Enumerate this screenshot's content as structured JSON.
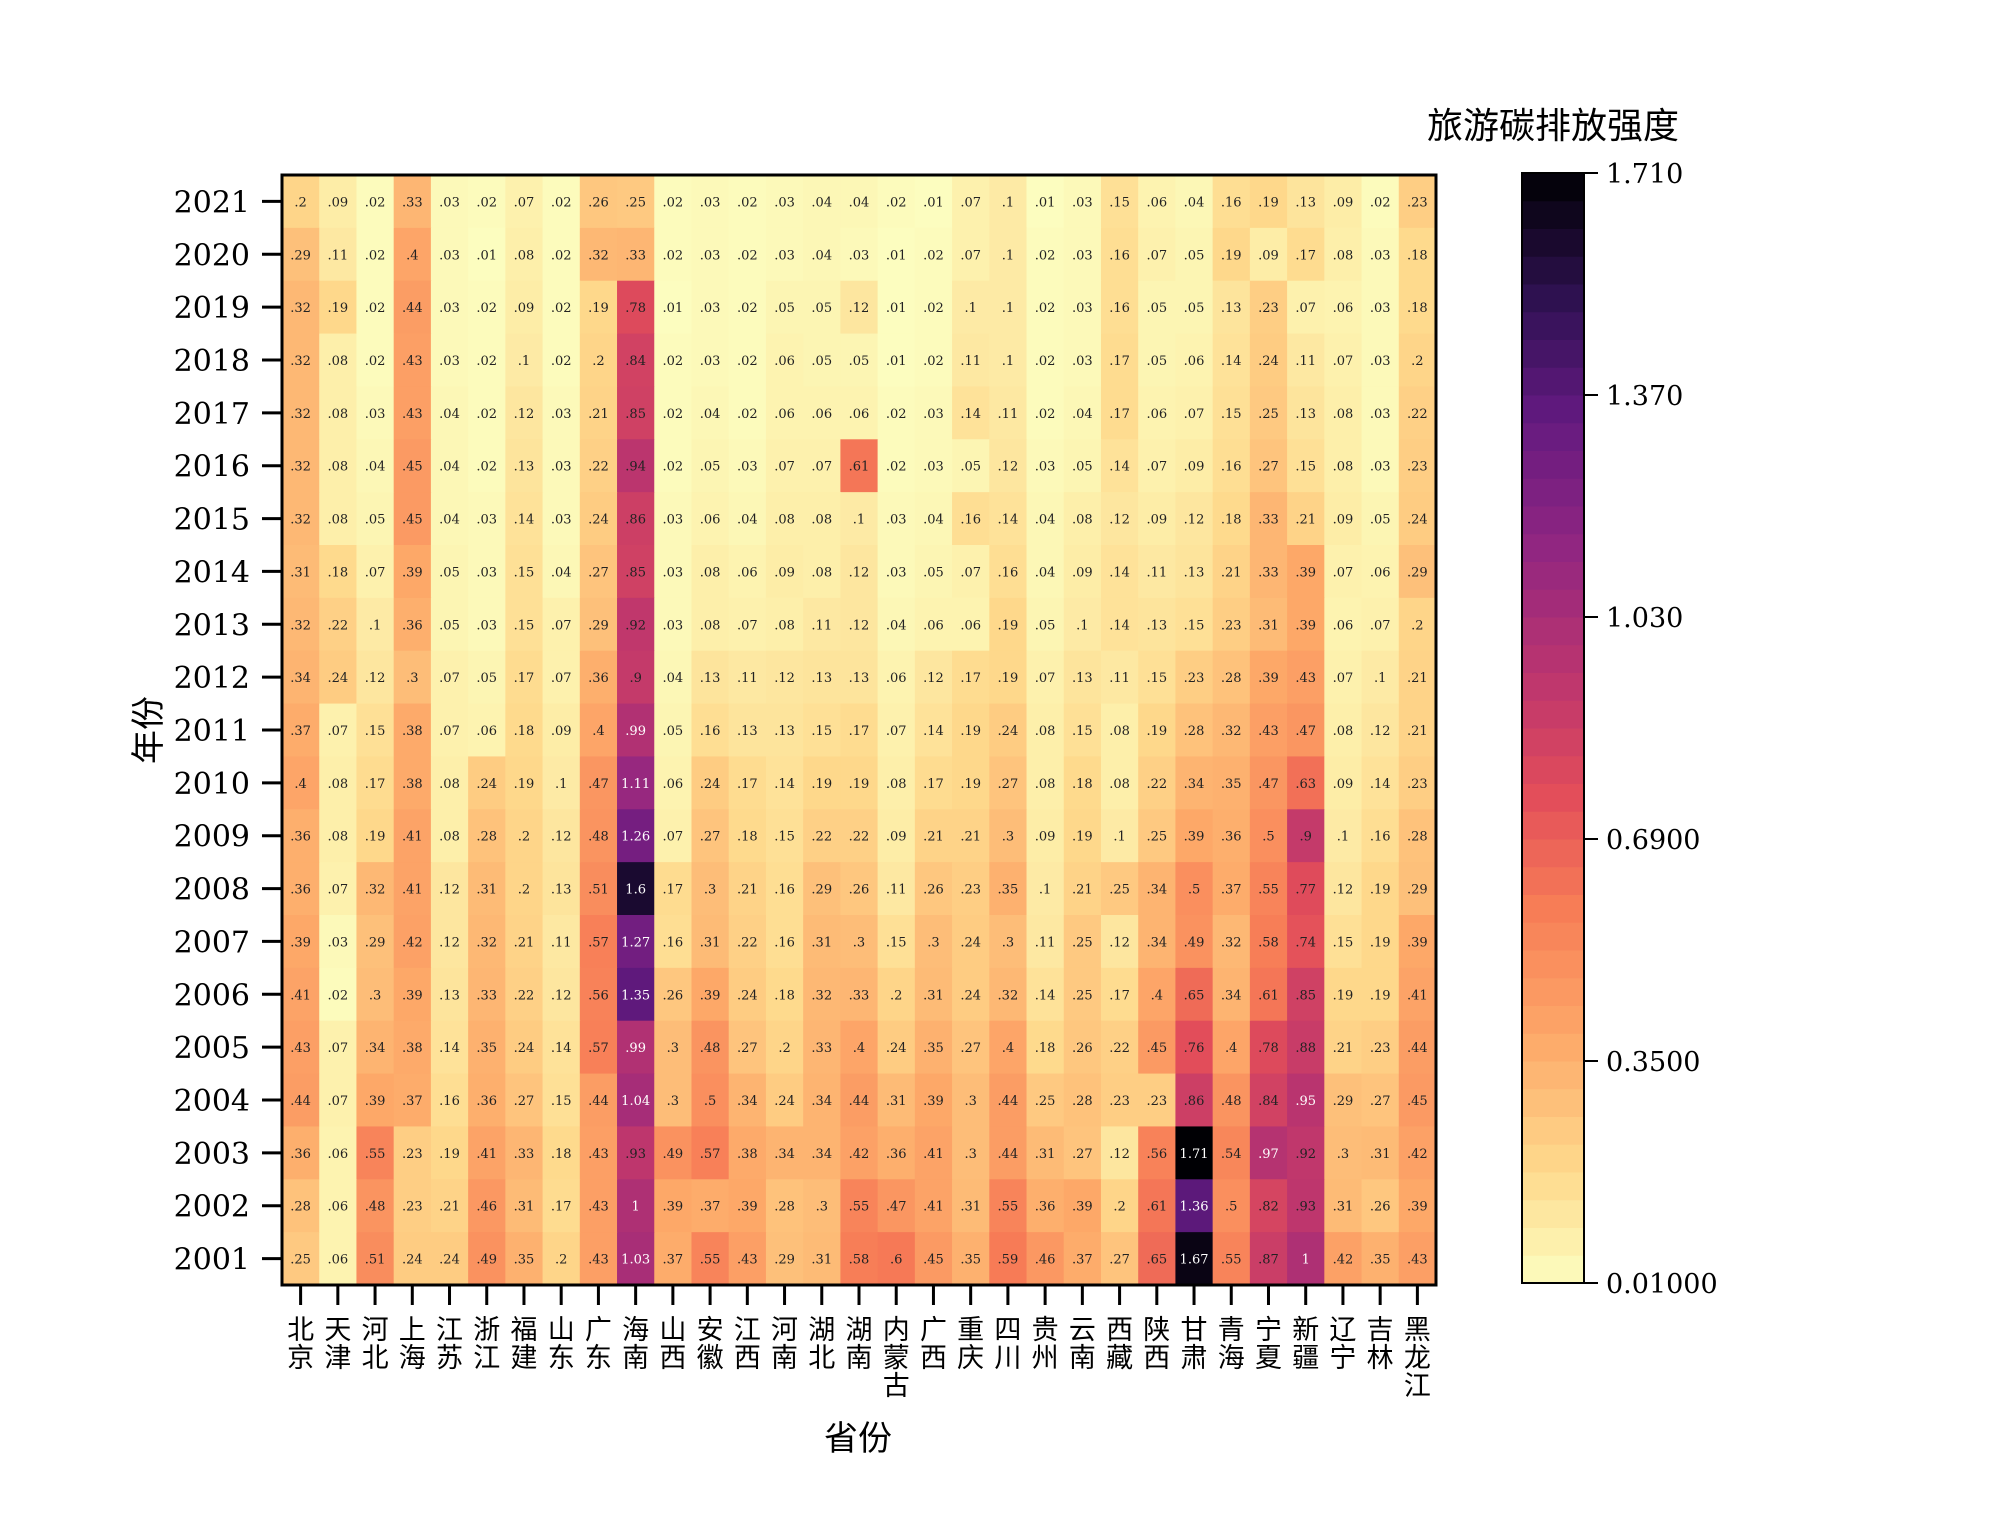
{
  "chart_data": {
    "type": "heatmap",
    "xlabel": "省份",
    "ylabel": "年份",
    "colorbar_title": "旅游碳排放强度",
    "colorbar_ticks": [
      "0.01000",
      "0.3500",
      "0.6900",
      "1.030",
      "1.370",
      "1.710"
    ],
    "colorbar_tick_values": [
      0.01,
      0.35,
      0.69,
      1.03,
      1.37,
      1.71
    ],
    "colormap": "magma_r",
    "vmin": 0.01,
    "vmax": 1.71,
    "provinces": [
      "北京",
      "天津",
      "河北",
      "上海",
      "江苏",
      "浙江",
      "福建",
      "山东",
      "广东",
      "海南",
      "山西",
      "安徽",
      "江西",
      "河南",
      "湖北",
      "湖南",
      "内蒙古",
      "广西",
      "重庆",
      "四川",
      "贵州",
      "云南",
      "西藏",
      "陕西",
      "甘肃",
      "青海",
      "宁夏",
      "新疆",
      "辽宁",
      "吉林",
      "黑龙江"
    ],
    "years": [
      "2021",
      "2020",
      "2019",
      "2018",
      "2017",
      "2016",
      "2015",
      "2014",
      "2013",
      "2012",
      "2011",
      "2010",
      "2009",
      "2008",
      "2007",
      "2006",
      "2005",
      "2004",
      "2003",
      "2002",
      "2001"
    ],
    "values": [
      [
        0.2,
        0.09,
        0.02,
        0.33,
        0.03,
        0.02,
        0.07,
        0.02,
        0.26,
        0.25,
        0.02,
        0.03,
        0.02,
        0.03,
        0.04,
        0.04,
        0.02,
        0.01,
        0.07,
        0.1,
        0.01,
        0.03,
        0.15,
        0.06,
        0.04,
        0.16,
        0.19,
        0.13,
        0.09,
        0.02,
        0.23
      ],
      [
        0.29,
        0.11,
        0.02,
        0.4,
        0.03,
        0.01,
        0.08,
        0.02,
        0.32,
        0.33,
        0.02,
        0.03,
        0.02,
        0.03,
        0.04,
        0.03,
        0.01,
        0.02,
        0.07,
        0.1,
        0.02,
        0.03,
        0.16,
        0.07,
        0.05,
        0.19,
        0.09,
        0.17,
        0.08,
        0.03,
        0.18
      ],
      [
        0.32,
        0.19,
        0.02,
        0.44,
        0.03,
        0.02,
        0.09,
        0.02,
        0.19,
        0.78,
        0.01,
        0.03,
        0.02,
        0.05,
        0.05,
        0.12,
        0.01,
        0.02,
        0.1,
        0.1,
        0.02,
        0.03,
        0.16,
        0.05,
        0.05,
        0.13,
        0.23,
        0.07,
        0.06,
        0.03,
        0.18
      ],
      [
        0.32,
        0.08,
        0.02,
        0.43,
        0.03,
        0.02,
        0.1,
        0.02,
        0.2,
        0.84,
        0.02,
        0.03,
        0.02,
        0.06,
        0.05,
        0.05,
        0.01,
        0.02,
        0.11,
        0.1,
        0.02,
        0.03,
        0.17,
        0.05,
        0.06,
        0.14,
        0.24,
        0.11,
        0.07,
        0.03,
        0.2
      ],
      [
        0.32,
        0.08,
        0.03,
        0.43,
        0.04,
        0.02,
        0.12,
        0.03,
        0.21,
        0.85,
        0.02,
        0.04,
        0.02,
        0.06,
        0.06,
        0.06,
        0.02,
        0.03,
        0.14,
        0.11,
        0.02,
        0.04,
        0.17,
        0.06,
        0.07,
        0.15,
        0.25,
        0.13,
        0.08,
        0.03,
        0.22
      ],
      [
        0.32,
        0.08,
        0.04,
        0.45,
        0.04,
        0.02,
        0.13,
        0.03,
        0.22,
        0.94,
        0.02,
        0.05,
        0.03,
        0.07,
        0.07,
        0.61,
        0.02,
        0.03,
        0.05,
        0.12,
        0.03,
        0.05,
        0.14,
        0.07,
        0.09,
        0.16,
        0.27,
        0.15,
        0.08,
        0.03,
        0.23
      ],
      [
        0.32,
        0.08,
        0.05,
        0.45,
        0.04,
        0.03,
        0.14,
        0.03,
        0.24,
        0.86,
        0.03,
        0.06,
        0.04,
        0.08,
        0.08,
        0.1,
        0.03,
        0.04,
        0.16,
        0.14,
        0.04,
        0.08,
        0.12,
        0.09,
        0.12,
        0.18,
        0.33,
        0.21,
        0.09,
        0.05,
        0.24
      ],
      [
        0.31,
        0.18,
        0.07,
        0.39,
        0.05,
        0.03,
        0.15,
        0.04,
        0.27,
        0.85,
        0.03,
        0.08,
        0.06,
        0.09,
        0.08,
        0.12,
        0.03,
        0.05,
        0.07,
        0.16,
        0.04,
        0.09,
        0.14,
        0.11,
        0.13,
        0.21,
        0.33,
        0.39,
        0.07,
        0.06,
        0.29
      ],
      [
        0.32,
        0.22,
        0.1,
        0.36,
        0.05,
        0.03,
        0.15,
        0.07,
        0.29,
        0.92,
        0.03,
        0.08,
        0.07,
        0.08,
        0.11,
        0.12,
        0.04,
        0.06,
        0.06,
        0.19,
        0.05,
        0.1,
        0.14,
        0.13,
        0.15,
        0.23,
        0.31,
        0.39,
        0.06,
        0.07,
        0.2
      ],
      [
        0.34,
        0.24,
        0.12,
        0.3,
        0.07,
        0.05,
        0.17,
        0.07,
        0.36,
        0.9,
        0.04,
        0.13,
        0.11,
        0.12,
        0.13,
        0.13,
        0.06,
        0.12,
        0.17,
        0.19,
        0.07,
        0.13,
        0.11,
        0.15,
        0.23,
        0.28,
        0.39,
        0.43,
        0.07,
        0.1,
        0.21
      ],
      [
        0.37,
        0.07,
        0.15,
        0.38,
        0.07,
        0.06,
        0.18,
        0.09,
        0.4,
        0.99,
        0.05,
        0.16,
        0.13,
        0.13,
        0.15,
        0.17,
        0.07,
        0.14,
        0.19,
        0.24,
        0.08,
        0.15,
        0.08,
        0.19,
        0.28,
        0.32,
        0.43,
        0.47,
        0.08,
        0.12,
        0.21
      ],
      [
        0.4,
        0.08,
        0.17,
        0.38,
        0.08,
        0.24,
        0.19,
        0.1,
        0.47,
        1.11,
        0.06,
        0.24,
        0.17,
        0.14,
        0.19,
        0.19,
        0.08,
        0.17,
        0.19,
        0.27,
        0.08,
        0.18,
        0.08,
        0.22,
        0.34,
        0.35,
        0.47,
        0.63,
        0.09,
        0.14,
        0.23
      ],
      [
        0.36,
        0.08,
        0.19,
        0.41,
        0.08,
        0.28,
        0.2,
        0.12,
        0.48,
        1.26,
        0.07,
        0.27,
        0.18,
        0.15,
        0.22,
        0.22,
        0.09,
        0.21,
        0.21,
        0.3,
        0.09,
        0.19,
        0.1,
        0.25,
        0.39,
        0.36,
        0.5,
        0.9,
        0.1,
        0.16,
        0.28
      ],
      [
        0.36,
        0.07,
        0.32,
        0.41,
        0.12,
        0.31,
        0.2,
        0.13,
        0.51,
        1.6,
        0.17,
        0.3,
        0.21,
        0.16,
        0.29,
        0.26,
        0.11,
        0.26,
        0.23,
        0.35,
        0.1,
        0.21,
        0.25,
        0.34,
        0.5,
        0.37,
        0.55,
        0.77,
        0.12,
        0.19,
        0.29
      ],
      [
        0.39,
        0.03,
        0.29,
        0.42,
        0.12,
        0.32,
        0.21,
        0.11,
        0.57,
        1.27,
        0.16,
        0.31,
        0.22,
        0.16,
        0.31,
        0.3,
        0.15,
        0.3,
        0.24,
        0.3,
        0.11,
        0.25,
        0.12,
        0.34,
        0.49,
        0.32,
        0.58,
        0.74,
        0.15,
        0.19,
        0.39
      ],
      [
        0.41,
        0.02,
        0.3,
        0.39,
        0.13,
        0.33,
        0.22,
        0.12,
        0.56,
        1.35,
        0.26,
        0.39,
        0.24,
        0.18,
        0.32,
        0.33,
        0.2,
        0.31,
        0.24,
        0.32,
        0.14,
        0.25,
        0.17,
        0.4,
        0.65,
        0.34,
        0.61,
        0.85,
        0.19,
        0.19,
        0.41
      ],
      [
        0.43,
        0.07,
        0.34,
        0.38,
        0.14,
        0.35,
        0.24,
        0.14,
        0.57,
        0.99,
        0.3,
        0.48,
        0.27,
        0.2,
        0.33,
        0.4,
        0.24,
        0.35,
        0.27,
        0.4,
        0.18,
        0.26,
        0.22,
        0.45,
        0.76,
        0.4,
        0.78,
        0.88,
        0.21,
        0.23,
        0.44
      ],
      [
        0.44,
        0.07,
        0.39,
        0.37,
        0.16,
        0.36,
        0.27,
        0.15,
        0.44,
        1.04,
        0.3,
        0.5,
        0.34,
        0.24,
        0.34,
        0.44,
        0.31,
        0.39,
        0.3,
        0.44,
        0.25,
        0.28,
        0.23,
        0.23,
        0.86,
        0.48,
        0.84,
        0.95,
        0.29,
        0.27,
        0.45
      ],
      [
        0.36,
        0.06,
        0.55,
        0.23,
        0.19,
        0.41,
        0.33,
        0.18,
        0.43,
        0.93,
        0.49,
        0.57,
        0.38,
        0.34,
        0.34,
        0.42,
        0.36,
        0.41,
        0.3,
        0.44,
        0.31,
        0.27,
        0.12,
        0.56,
        1.71,
        0.54,
        0.97,
        0.92,
        0.3,
        0.31,
        0.42
      ],
      [
        0.28,
        0.06,
        0.48,
        0.23,
        0.21,
        0.46,
        0.31,
        0.17,
        0.43,
        1.0,
        0.39,
        0.37,
        0.39,
        0.28,
        0.3,
        0.55,
        0.47,
        0.41,
        0.31,
        0.55,
        0.36,
        0.39,
        0.2,
        0.61,
        1.36,
        0.5,
        0.82,
        0.93,
        0.31,
        0.26,
        0.39
      ],
      [
        0.25,
        0.06,
        0.51,
        0.24,
        0.24,
        0.49,
        0.35,
        0.2,
        0.43,
        1.03,
        0.37,
        0.55,
        0.43,
        0.29,
        0.31,
        0.58,
        0.6,
        0.45,
        0.35,
        0.59,
        0.46,
        0.37,
        0.27,
        0.65,
        1.67,
        0.55,
        0.87,
        1.0,
        0.42,
        0.35,
        0.43
      ]
    ]
  }
}
